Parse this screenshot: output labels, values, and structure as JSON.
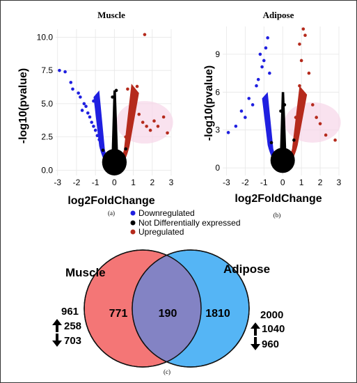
{
  "chart_data": [
    {
      "type": "scatter",
      "panel_label": "(a)",
      "title": "Muscle",
      "xlabel": "log2FoldChange",
      "ylabel": "-log10(pvalue)",
      "xlim": [
        -3.1,
        3.0
      ],
      "ylim": [
        -0.4,
        10.6
      ],
      "xticks": [
        -3,
        -2,
        -1,
        0,
        1,
        2,
        3
      ],
      "yticks": [
        0.0,
        2.5,
        5.0,
        7.5,
        10.0
      ],
      "ytick_labels": [
        "0.0",
        "2.5",
        "5.0",
        "7.5",
        "10.0"
      ],
      "grid": true,
      "series": [
        {
          "name": "Downregulated",
          "color": "#1f1fe0",
          "x": [
            -2.9,
            -2.6,
            -2.3,
            -2.2,
            -1.9,
            -1.8,
            -1.6,
            -1.5,
            -1.4,
            -1.3,
            -1.2,
            -1.1,
            -1.0,
            -0.9,
            -0.8,
            -1.7,
            -1.1
          ],
          "y": [
            7.5,
            7.4,
            6.6,
            6.1,
            5.8,
            5.5,
            5.0,
            4.8,
            4.3,
            4.0,
            3.6,
            3.3,
            3.0,
            2.6,
            2.3,
            4.5,
            5.2
          ]
        },
        {
          "name": "Not Differentially expressed",
          "color": "#000000",
          "x": [
            -0.6,
            -0.4,
            -0.2,
            0.0,
            0.2,
            0.4,
            0.6,
            0.0,
            -0.1,
            0.1
          ],
          "y": [
            1.5,
            0.8,
            0.3,
            0.1,
            0.4,
            0.9,
            1.6,
            3.5,
            5.5,
            6.0
          ]
        },
        {
          "name": "Upregulated",
          "color": "#b52a1c",
          "x": [
            0.6,
            0.8,
            0.9,
            1.1,
            1.3,
            1.5,
            1.7,
            1.9,
            2.1,
            2.3,
            2.6,
            2.8,
            1.6,
            1.2,
            0.7
          ],
          "y": [
            2.5,
            3.5,
            4.8,
            5.2,
            4.2,
            3.6,
            3.3,
            3.0,
            3.7,
            3.3,
            4.0,
            2.8,
            10.2,
            6.3,
            6.1
          ]
        }
      ]
    },
    {
      "type": "scatter",
      "panel_label": "(b)",
      "title": "Adipose",
      "xlabel": "log2FoldChange",
      "ylabel": "-log10(pvalue)",
      "xlim": [
        -3.2,
        3.0
      ],
      "ylim": [
        -0.6,
        11.2
      ],
      "xticks": [
        -3,
        -2,
        -1,
        0,
        1,
        2,
        3
      ],
      "yticks": [
        0,
        3,
        6,
        9
      ],
      "ytick_labels": [
        "0",
        "3",
        "6",
        "9"
      ],
      "grid": true,
      "series": [
        {
          "name": "Downregulated",
          "color": "#1f1fe0",
          "x": [
            -2.9,
            -2.5,
            -2.2,
            -2.0,
            -1.8,
            -1.6,
            -1.4,
            -1.3,
            -1.1,
            -1.0,
            -0.9,
            -0.8,
            -0.7,
            -1.2
          ],
          "y": [
            2.8,
            3.3,
            4.5,
            4.0,
            5.5,
            5.0,
            6.5,
            7.0,
            8.0,
            8.5,
            9.5,
            10.3,
            7.5,
            9.0
          ]
        },
        {
          "name": "Not Differentially expressed",
          "color": "#000000",
          "x": [
            -0.6,
            -0.4,
            -0.2,
            0.0,
            0.2,
            0.4,
            0.6,
            -0.1,
            0.1
          ],
          "y": [
            2.0,
            1.0,
            0.4,
            0.1,
            0.5,
            1.2,
            2.2,
            4.5,
            5.0
          ]
        },
        {
          "name": "Upregulated",
          "color": "#b52a1c",
          "x": [
            0.7,
            0.9,
            1.0,
            1.2,
            1.4,
            1.6,
            1.8,
            2.0,
            2.3,
            2.8,
            1.1,
            0.9
          ],
          "y": [
            4.0,
            6.5,
            8.5,
            10.5,
            7.5,
            5.0,
            4.0,
            3.5,
            2.6,
            2.2,
            11.0,
            9.8
          ]
        }
      ]
    },
    {
      "type": "venn",
      "panel_label": "(c)",
      "sets": [
        {
          "name": "Muscle",
          "only": "771",
          "total": "961",
          "up": "258",
          "down": "703",
          "color": "#f47676"
        },
        {
          "name": "Adipose",
          "only": "1810",
          "total": "2000",
          "up": "1040",
          "down": "960",
          "color": "#55b5f5"
        }
      ],
      "intersection": "190",
      "intersection_color": "#8383c4"
    }
  ],
  "legend": [
    {
      "label": "Downregulated",
      "color": "#1f1fe0"
    },
    {
      "label": "Not Differentially expressed",
      "color": "#000000"
    },
    {
      "label": "Upregulated",
      "color": "#b52a1c"
    }
  ]
}
